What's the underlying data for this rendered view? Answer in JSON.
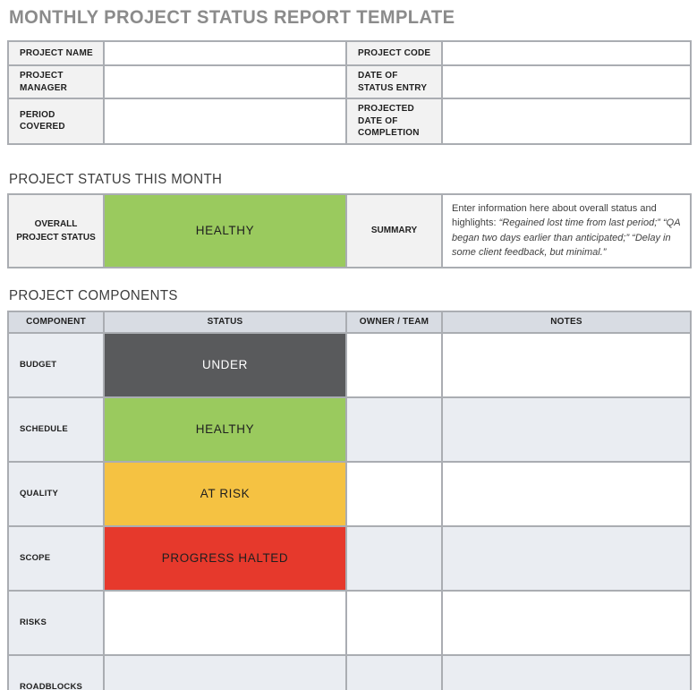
{
  "page": {
    "title": "MONTHLY PROJECT STATUS REPORT TEMPLATE"
  },
  "colors": {
    "title_gray": "#8b8b8b",
    "table_border": "#aaadb2",
    "label_bg": "#f2f2f2",
    "header_row_bg": "#d8dce3",
    "alt_row_bg": "#eaedf2",
    "healthy_green": "#9aca5e",
    "under_dark_gray": "#595a5c",
    "at_risk_yellow": "#f5c242",
    "halted_red": "#e6392c"
  },
  "project_info": {
    "rows": [
      {
        "left_label": "PROJECT NAME",
        "left_value": "",
        "right_label": "PROJECT CODE",
        "right_value": ""
      },
      {
        "left_label": "PROJECT MANAGER",
        "left_value": "",
        "right_label": "DATE OF STATUS ENTRY",
        "right_value": ""
      },
      {
        "left_label": "PERIOD COVERED",
        "left_value": "",
        "right_label": "PROJECTED DATE OF COMPLETION",
        "right_value": ""
      }
    ]
  },
  "status_section": {
    "heading": "PROJECT STATUS THIS MONTH",
    "overall_label": "OVERALL PROJECT STATUS",
    "overall_status": "HEALTHY",
    "overall_status_color": "#9aca5e",
    "summary_label": "SUMMARY",
    "summary_intro": "Enter information here about overall status and highlights: ",
    "summary_quotes": "“Regained lost time from last period;” “QA began two days earlier than anticipated;” “Delay in some client feedback, but minimal.”"
  },
  "components_section": {
    "heading": "PROJECT COMPONENTS",
    "columns": {
      "component": "COMPONENT",
      "status": "STATUS",
      "owner": "OWNER / TEAM",
      "notes": "NOTES"
    },
    "rows": [
      {
        "component": "BUDGET",
        "status": "UNDER",
        "status_color": "#595a5c",
        "status_text_color": "#ffffff",
        "owner": "",
        "notes": ""
      },
      {
        "component": "SCHEDULE",
        "status": "HEALTHY",
        "status_color": "#9aca5e",
        "status_text_color": "#1f1f1f",
        "owner": "",
        "notes": ""
      },
      {
        "component": "QUALITY",
        "status": "AT RISK",
        "status_color": "#f5c242",
        "status_text_color": "#1f1f1f",
        "owner": "",
        "notes": ""
      },
      {
        "component": "SCOPE",
        "status": "PROGRESS HALTED",
        "status_color": "#e6392c",
        "status_text_color": "#1f1f1f",
        "owner": "",
        "notes": ""
      },
      {
        "component": "RISKS",
        "status": "",
        "status_color": "",
        "status_text_color": "",
        "owner": "",
        "notes": ""
      },
      {
        "component": "ROADBLOCKS",
        "status": "",
        "status_color": "",
        "status_text_color": "",
        "owner": "",
        "notes": ""
      }
    ]
  }
}
